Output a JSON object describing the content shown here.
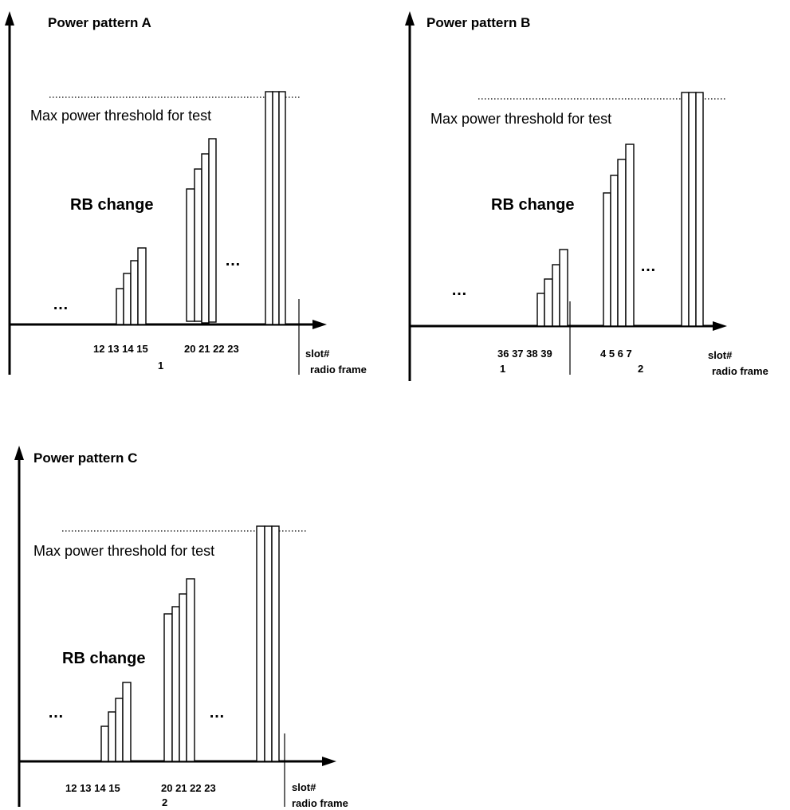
{
  "panels": [
    {
      "id": "a",
      "title": "Power pattern A",
      "threshold_label": "Max power threshold for test",
      "rb_label": "RB change",
      "ellipsis": [
        "…",
        "…"
      ],
      "slot_groups": [
        "12 13 14 15",
        "20 21 22 23"
      ],
      "frame_numbers": [
        "1"
      ],
      "axis_labels": {
        "slot": "slot#",
        "frame": "radio frame"
      }
    },
    {
      "id": "b",
      "title": "Power pattern B",
      "threshold_label": "Max power threshold for test",
      "rb_label": "RB change",
      "ellipsis": [
        "…",
        "…"
      ],
      "slot_groups": [
        "36 37 38 39",
        "4 5 6 7"
      ],
      "frame_numbers": [
        "1",
        "2"
      ],
      "axis_labels": {
        "slot": "slot#",
        "frame": "radio frame"
      }
    },
    {
      "id": "c",
      "title": "Power pattern C",
      "threshold_label": "Max power threshold for test",
      "rb_label": "RB change",
      "ellipsis": [
        "…",
        "…"
      ],
      "slot_groups": [
        "12 13 14 15",
        "20 21 22 23"
      ],
      "frame_numbers": [
        "2"
      ],
      "axis_labels": {
        "slot": "slot#",
        "frame": "radio frame"
      }
    }
  ]
}
